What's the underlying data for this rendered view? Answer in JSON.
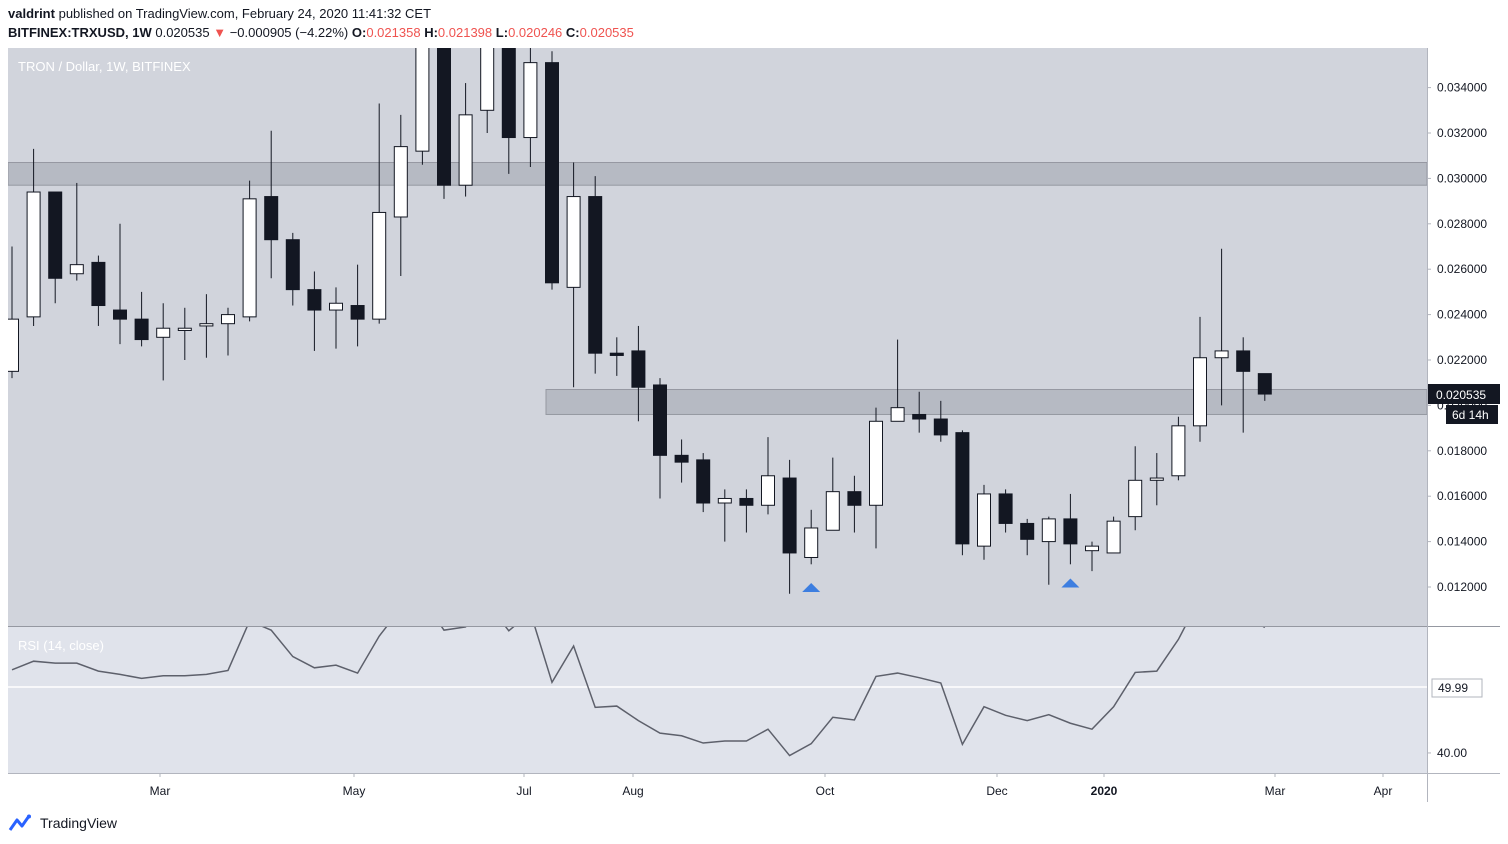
{
  "header": {
    "author": "valdrint",
    "published_text": "published on TradingView.com, February 24, 2020 11:41:32 CET"
  },
  "ohlc_line": {
    "symbol": "BITFINEX:TRXUSD, 1W",
    "last": "0.020535",
    "arrow": "▼",
    "change": "−0.000905 (−4.22%)",
    "o_label": "O:",
    "o_value": "0.021358",
    "h_label": "H:",
    "h_value": "0.021398",
    "l_label": "L:",
    "l_value": "0.020246",
    "c_label": "C:",
    "c_value": "0.020535"
  },
  "footer": {
    "brand": "TradingView",
    "logo_icon": "tradingview-logo-icon"
  },
  "colors": {
    "pane_bg": "#d1d4dc",
    "rsi_bg": "#e0e3eb",
    "zone": "#b2b5be",
    "bull_body": "#ffffff",
    "bear_body": "#131722",
    "marker": "#3d7ee0",
    "rsi_line": "#5d606b"
  },
  "chart_data": [
    {
      "type": "candlestick",
      "title": "TRON / Dollar, 1W, BITFINEX",
      "y_ticks": [
        "0.012000",
        "0.014000",
        "0.016000",
        "0.018000",
        "0.020000",
        "0.022000",
        "0.024000",
        "0.026000",
        "0.028000",
        "0.030000",
        "0.032000",
        "0.034000"
      ],
      "x_tick_labels": [
        "Mar",
        "May",
        "Jul",
        "Aug",
        "Oct",
        "Dec",
        "2020",
        "Mar",
        "Apr"
      ],
      "last_price_label": "0.020535",
      "countdown_label": "6d 14h",
      "zones": [
        {
          "from": 0.0297,
          "to": 0.0307
        },
        {
          "from": 0.0196,
          "to": 0.0207
        }
      ],
      "markers": [
        {
          "candle_index": 37,
          "value": 0.012,
          "shape": "triangle-up"
        },
        {
          "candle_index": 49,
          "value": 0.0122,
          "shape": "triangle-up"
        }
      ],
      "candles": [
        {
          "o": 0.0215,
          "h": 0.027,
          "l": 0.0212,
          "c": 0.0238
        },
        {
          "o": 0.0239,
          "h": 0.0313,
          "l": 0.0235,
          "c": 0.0294
        },
        {
          "o": 0.0294,
          "h": 0.0294,
          "l": 0.0245,
          "c": 0.0256
        },
        {
          "o": 0.0258,
          "h": 0.0298,
          "l": 0.0255,
          "c": 0.0262
        },
        {
          "o": 0.0263,
          "h": 0.0266,
          "l": 0.0235,
          "c": 0.0244
        },
        {
          "o": 0.0242,
          "h": 0.028,
          "l": 0.0227,
          "c": 0.0238
        },
        {
          "o": 0.0238,
          "h": 0.025,
          "l": 0.0226,
          "c": 0.0229
        },
        {
          "o": 0.023,
          "h": 0.0245,
          "l": 0.0211,
          "c": 0.0234
        },
        {
          "o": 0.0233,
          "h": 0.0243,
          "l": 0.022,
          "c": 0.0234
        },
        {
          "o": 0.0235,
          "h": 0.0249,
          "l": 0.0221,
          "c": 0.0236
        },
        {
          "o": 0.0236,
          "h": 0.0243,
          "l": 0.0222,
          "c": 0.024
        },
        {
          "o": 0.0239,
          "h": 0.0299,
          "l": 0.0237,
          "c": 0.0291
        },
        {
          "o": 0.0292,
          "h": 0.0321,
          "l": 0.0256,
          "c": 0.0273
        },
        {
          "o": 0.0273,
          "h": 0.0276,
          "l": 0.0244,
          "c": 0.0251
        },
        {
          "o": 0.0251,
          "h": 0.0259,
          "l": 0.0224,
          "c": 0.0242
        },
        {
          "o": 0.0242,
          "h": 0.0252,
          "l": 0.0225,
          "c": 0.0245
        },
        {
          "o": 0.0244,
          "h": 0.0262,
          "l": 0.0226,
          "c": 0.0238
        },
        {
          "o": 0.0238,
          "h": 0.0333,
          "l": 0.0236,
          "c": 0.0285
        },
        {
          "o": 0.0283,
          "h": 0.0328,
          "l": 0.0257,
          "c": 0.0314
        },
        {
          "o": 0.0312,
          "h": 0.038,
          "l": 0.0306,
          "c": 0.038
        },
        {
          "o": 0.038,
          "h": 0.038,
          "l": 0.0291,
          "c": 0.0297
        },
        {
          "o": 0.0297,
          "h": 0.0342,
          "l": 0.0292,
          "c": 0.0328
        },
        {
          "o": 0.033,
          "h": 0.038,
          "l": 0.032,
          "c": 0.038
        },
        {
          "o": 0.038,
          "h": 0.038,
          "l": 0.0302,
          "c": 0.0318
        },
        {
          "o": 0.0318,
          "h": 0.038,
          "l": 0.0305,
          "c": 0.0351
        },
        {
          "o": 0.0351,
          "h": 0.0356,
          "l": 0.0251,
          "c": 0.0254
        },
        {
          "o": 0.0252,
          "h": 0.0307,
          "l": 0.0208,
          "c": 0.0292
        },
        {
          "o": 0.0292,
          "h": 0.0301,
          "l": 0.0214,
          "c": 0.0223
        },
        {
          "o": 0.0223,
          "h": 0.023,
          "l": 0.0213,
          "c": 0.0222
        },
        {
          "o": 0.0224,
          "h": 0.0235,
          "l": 0.0193,
          "c": 0.0208
        },
        {
          "o": 0.0209,
          "h": 0.0212,
          "l": 0.0159,
          "c": 0.0178
        },
        {
          "o": 0.0178,
          "h": 0.0185,
          "l": 0.0166,
          "c": 0.0175
        },
        {
          "o": 0.0176,
          "h": 0.0179,
          "l": 0.0153,
          "c": 0.0157
        },
        {
          "o": 0.0157,
          "h": 0.0163,
          "l": 0.014,
          "c": 0.0159
        },
        {
          "o": 0.0159,
          "h": 0.0163,
          "l": 0.0144,
          "c": 0.0156
        },
        {
          "o": 0.0156,
          "h": 0.0186,
          "l": 0.0152,
          "c": 0.0169
        },
        {
          "o": 0.0168,
          "h": 0.0176,
          "l": 0.0117,
          "c": 0.0135
        },
        {
          "o": 0.0133,
          "h": 0.0154,
          "l": 0.013,
          "c": 0.0146
        },
        {
          "o": 0.0145,
          "h": 0.0177,
          "l": 0.0145,
          "c": 0.0162
        },
        {
          "o": 0.0162,
          "h": 0.0169,
          "l": 0.0144,
          "c": 0.0156
        },
        {
          "o": 0.0156,
          "h": 0.0199,
          "l": 0.0137,
          "c": 0.0193
        },
        {
          "o": 0.0193,
          "h": 0.0229,
          "l": 0.0193,
          "c": 0.0199
        },
        {
          "o": 0.0196,
          "h": 0.0206,
          "l": 0.0188,
          "c": 0.0194
        },
        {
          "o": 0.0194,
          "h": 0.0202,
          "l": 0.0184,
          "c": 0.0187
        },
        {
          "o": 0.0188,
          "h": 0.0189,
          "l": 0.0134,
          "c": 0.0139
        },
        {
          "o": 0.0138,
          "h": 0.0165,
          "l": 0.0132,
          "c": 0.0161
        },
        {
          "o": 0.0161,
          "h": 0.0163,
          "l": 0.0144,
          "c": 0.0148
        },
        {
          "o": 0.0148,
          "h": 0.015,
          "l": 0.0134,
          "c": 0.0141
        },
        {
          "o": 0.014,
          "h": 0.0151,
          "l": 0.0121,
          "c": 0.015
        },
        {
          "o": 0.015,
          "h": 0.0161,
          "l": 0.013,
          "c": 0.0139
        },
        {
          "o": 0.0136,
          "h": 0.014,
          "l": 0.0127,
          "c": 0.0138
        },
        {
          "o": 0.0135,
          "h": 0.0151,
          "l": 0.0135,
          "c": 0.0149
        },
        {
          "o": 0.0151,
          "h": 0.0182,
          "l": 0.0145,
          "c": 0.0167
        },
        {
          "o": 0.0167,
          "h": 0.0179,
          "l": 0.0156,
          "c": 0.0168
        },
        {
          "o": 0.0169,
          "h": 0.0195,
          "l": 0.0167,
          "c": 0.0191
        },
        {
          "o": 0.0191,
          "h": 0.0239,
          "l": 0.0184,
          "c": 0.0221
        },
        {
          "o": 0.0221,
          "h": 0.0269,
          "l": 0.02,
          "c": 0.0224
        },
        {
          "o": 0.0224,
          "h": 0.023,
          "l": 0.0188,
          "c": 0.0215
        },
        {
          "o": 0.0214,
          "h": 0.0214,
          "l": 0.0202,
          "c": 0.0205
        }
      ]
    },
    {
      "type": "line",
      "title": "RSI (14, close)",
      "y_ticks": [
        "40.00"
      ],
      "current_label": "49.99",
      "level": 49.99,
      "series": [
        {
          "values": [
            52.6,
            53.9,
            53.6,
            53.6,
            52.4,
            51.9,
            51.3,
            51.7,
            51.7,
            51.9,
            52.5,
            60.0,
            58.6,
            54.6,
            52.9,
            53.3,
            52.1,
            57.7,
            61.9,
            63.4,
            58.6,
            59.1,
            62.8,
            58.5,
            61.3,
            50.7,
            56.2,
            46.9,
            47.1,
            44.9,
            43.0,
            42.6,
            41.5,
            41.8,
            41.8,
            43.6,
            39.6,
            41.4,
            45.4,
            45.0,
            51.6,
            52.1,
            51.4,
            50.6,
            41.3,
            47.0,
            45.7,
            44.9,
            45.8,
            44.5,
            43.6,
            47.0,
            52.2,
            52.4,
            57.2,
            63.5,
            64.3,
            61.2,
            59.0
          ]
        }
      ]
    }
  ]
}
